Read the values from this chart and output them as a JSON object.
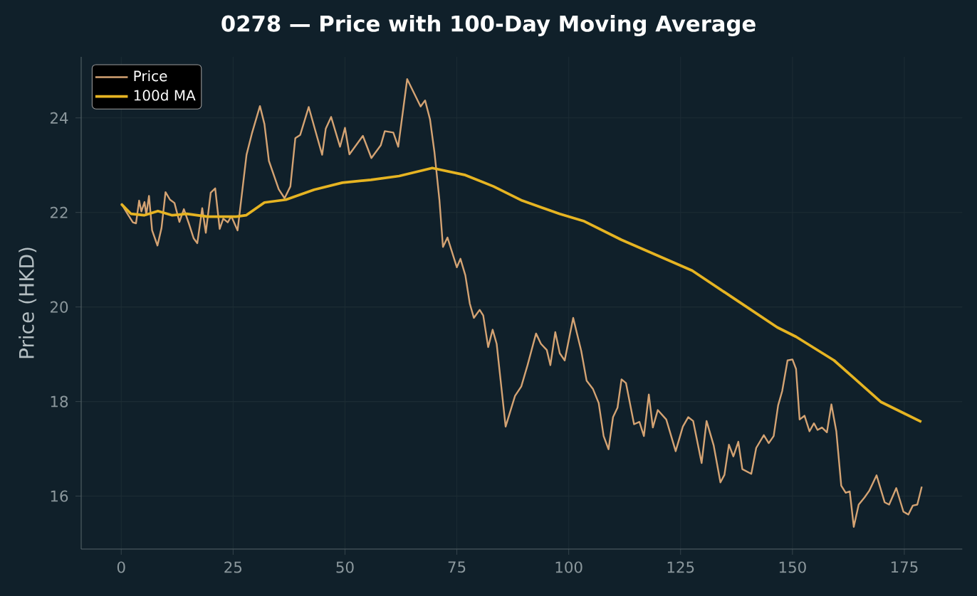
{
  "chart_data": {
    "type": "line",
    "title": "0278 — Price with 100-Day Moving Average",
    "ylabel": "Price (HKD)",
    "xlim": [
      -8.95,
      187.95
    ],
    "ylim": [
      14.88,
      25.29
    ],
    "xticks": [
      0,
      25,
      50,
      75,
      100,
      125,
      150,
      175
    ],
    "yticks": [
      16,
      18,
      20,
      22,
      24
    ],
    "grid": true,
    "legend": "top left",
    "marker": "none",
    "line_style": "solid",
    "series": [
      {
        "name": "Price",
        "color": "#d4a373",
        "x": [
          0,
          1.4,
          2.6,
          3.3,
          4.0,
          4.5,
          5.2,
          5.6,
          6.2,
          6.9,
          8.1,
          9.0,
          9.9,
          10.9,
          11.9,
          13.0,
          14.0,
          15.1,
          16.2,
          17.0,
          18.1,
          18.9,
          20.0,
          21.0,
          22.0,
          22.8,
          23.8,
          24.6,
          26.0,
          28.0,
          29.2,
          31.0,
          32.0,
          33.0,
          35.2,
          36.5,
          37.8,
          38.9,
          40.0,
          41.9,
          43.2,
          44.9,
          45.7,
          46.9,
          48.9,
          50.0,
          51.0,
          54.0,
          55.9,
          58.0,
          58.9,
          60.8,
          61.9,
          63.9,
          66.9,
          67.9,
          69.0,
          70.0,
          71.1,
          71.9,
          72.9,
          75.0,
          75.8,
          76.9,
          77.9,
          78.8,
          80.1,
          80.9,
          82.0,
          83.0,
          83.9,
          85.9,
          88.0,
          89.4,
          90.8,
          92.7,
          93.8,
          95.1,
          95.9,
          97.0,
          98.0,
          99.1,
          101.0,
          102.8,
          104.0,
          105.4,
          106.7,
          107.8,
          108.9,
          109.9,
          110.9,
          111.8,
          112.8,
          114.6,
          115.8,
          116.8,
          117.9,
          118.8,
          119.9,
          121.8,
          123.9,
          125.5,
          126.7,
          127.8,
          129.7,
          130.8,
          132.4,
          133.9,
          134.8,
          135.8,
          136.8,
          137.9,
          138.8,
          140.8,
          141.9,
          143.6,
          144.7,
          145.8,
          146.8,
          147.7,
          148.9,
          150.0,
          150.8,
          151.6,
          152.7,
          153.8,
          154.8,
          155.6,
          156.6,
          157.7,
          158.7,
          159.8,
          160.9,
          161.9,
          162.8,
          163.7,
          164.8,
          166.1,
          167.2,
          168.8,
          170.6,
          171.6,
          173.2,
          174.8,
          175.9,
          176.9,
          177.9,
          178.9
        ],
        "values": [
          22.19,
          21.97,
          21.79,
          21.77,
          22.25,
          22.02,
          22.22,
          21.95,
          22.35,
          21.62,
          21.3,
          21.67,
          22.43,
          22.27,
          22.2,
          21.8,
          22.07,
          21.77,
          21.45,
          21.35,
          22.09,
          21.57,
          22.42,
          22.51,
          21.65,
          21.87,
          21.79,
          21.92,
          21.62,
          23.22,
          23.67,
          24.25,
          23.87,
          23.09,
          22.49,
          22.3,
          22.55,
          23.57,
          23.64,
          24.23,
          23.79,
          23.22,
          23.77,
          24.02,
          23.39,
          23.79,
          23.23,
          23.62,
          23.15,
          23.42,
          23.72,
          23.69,
          23.39,
          24.82,
          24.24,
          24.37,
          23.97,
          23.27,
          22.27,
          21.27,
          21.47,
          20.84,
          21.02,
          20.67,
          20.07,
          19.77,
          19.94,
          19.82,
          19.15,
          19.52,
          19.22,
          17.47,
          18.12,
          18.32,
          18.77,
          19.44,
          19.22,
          19.09,
          18.77,
          19.47,
          19.02,
          18.87,
          19.77,
          19.07,
          18.44,
          18.27,
          17.97,
          17.27,
          16.99,
          17.67,
          17.87,
          18.47,
          18.39,
          17.52,
          17.57,
          17.27,
          18.15,
          17.45,
          17.82,
          17.62,
          16.95,
          17.47,
          17.67,
          17.59,
          16.7,
          17.59,
          17.07,
          16.29,
          16.45,
          17.09,
          16.84,
          17.15,
          16.57,
          16.47,
          17.02,
          17.29,
          17.12,
          17.27,
          17.92,
          18.22,
          18.87,
          18.89,
          18.69,
          17.62,
          17.7,
          17.37,
          17.54,
          17.4,
          17.45,
          17.35,
          17.94,
          17.37,
          16.22,
          16.07,
          16.1,
          15.35,
          15.82,
          15.97,
          16.12,
          16.44,
          15.87,
          15.82,
          16.17,
          15.67,
          15.61,
          15.8,
          15.82,
          16.2
        ]
      },
      {
        "name": "100d MA",
        "color": "#e6b422",
        "x": [
          0,
          2.2,
          5.1,
          8.2,
          11.4,
          14.6,
          19.3,
          25.7,
          27.9,
          32.0,
          36.8,
          43.1,
          49.4,
          55.8,
          62.1,
          69.5,
          76.9,
          83.2,
          89.6,
          98.0,
          103.3,
          111.8,
          119.1,
          127.6,
          137.1,
          146.6,
          150.8,
          159.3,
          163.5,
          169.8,
          178.8
        ],
        "values": [
          22.18,
          21.97,
          21.94,
          22.03,
          21.94,
          21.97,
          21.91,
          21.91,
          21.94,
          22.21,
          22.27,
          22.48,
          22.63,
          22.69,
          22.77,
          22.94,
          22.79,
          22.55,
          22.25,
          21.97,
          21.82,
          21.42,
          21.12,
          20.77,
          20.17,
          19.57,
          19.37,
          18.87,
          18.52,
          17.99,
          17.57
        ]
      }
    ]
  }
}
